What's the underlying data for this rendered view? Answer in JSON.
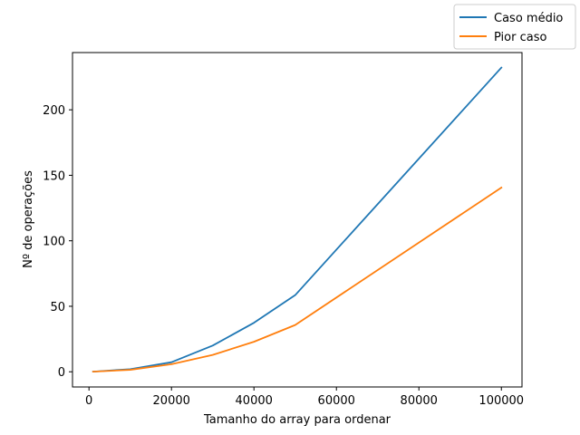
{
  "chart_data": {
    "type": "line",
    "xlabel": "Tamanho do array para ordenar",
    "ylabel": "Nº de operações",
    "xlim": [
      -4000,
      105000
    ],
    "ylim": [
      -11.6,
      243.7
    ],
    "xticks": [
      0,
      20000,
      40000,
      60000,
      80000,
      100000
    ],
    "xtick_labels": [
      "0",
      "20000",
      "40000",
      "60000",
      "80000",
      "100000"
    ],
    "yticks": [
      0,
      50,
      100,
      150,
      200
    ],
    "ytick_labels": [
      "0",
      "50",
      "100",
      "150",
      "200"
    ],
    "grid": false,
    "legend_position": "top-right (outside plot area)",
    "x": [
      1000,
      10000,
      20000,
      30000,
      40000,
      50000,
      100000
    ],
    "series": [
      {
        "name": "Caso médio",
        "color": "#1f77b4",
        "values": [
          0.1,
          2.0,
          7.3,
          20.0,
          37.4,
          58.5,
          232.2
        ]
      },
      {
        "name": "Pior caso",
        "color": "#ff7f0e",
        "values": [
          0.1,
          1.5,
          5.8,
          12.9,
          22.9,
          35.7,
          140.6
        ]
      }
    ]
  }
}
